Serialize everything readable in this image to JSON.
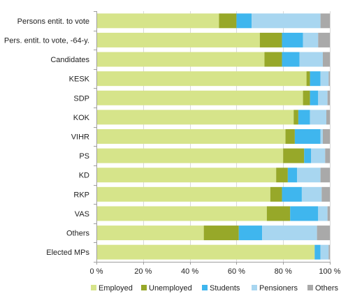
{
  "chart_data": {
    "type": "bar",
    "orientation": "horizontal",
    "stacked": true,
    "categories": [
      "Persons entit. to vote",
      "Pers. entit. to vote, -64-y.",
      "Candidates",
      "KESK",
      "SDP",
      "KOK",
      "VIHR",
      "PS",
      "KD",
      "RKP",
      "VAS",
      "Others",
      "Elected MPs"
    ],
    "series": [
      {
        "name": "Employed",
        "color": "#d6e48a",
        "values": [
          52.5,
          70,
          72,
          90,
          88.5,
          84.5,
          81,
          80,
          77,
          74.5,
          73,
          46,
          93.5
        ]
      },
      {
        "name": "Unemployed",
        "color": "#97a829",
        "values": [
          7.5,
          9.5,
          7.5,
          1.5,
          3,
          2,
          4,
          9,
          5,
          5,
          10,
          15,
          0
        ]
      },
      {
        "name": "Students",
        "color": "#3fb6ee",
        "values": [
          6.5,
          9,
          7.5,
          4.5,
          3.5,
          5,
          11,
          3,
          4,
          8.5,
          12,
          10,
          2.5
        ]
      },
      {
        "name": "Pensioners",
        "color": "#a8d6f0",
        "values": [
          29.5,
          6.5,
          10,
          3.5,
          4,
          7,
          1,
          6,
          10,
          8.5,
          4,
          23.5,
          3.5
        ]
      },
      {
        "name": "Others",
        "color": "#a9a9a9",
        "values": [
          4,
          5,
          3,
          0.5,
          1,
          1.5,
          3,
          2,
          4,
          3.5,
          1,
          5.5,
          0.5
        ]
      }
    ],
    "xlim": [
      0,
      100
    ],
    "xticks": [
      "0 %",
      "20 %",
      "40 %",
      "60 %",
      "80 %",
      "100 %"
    ],
    "xtick_values": [
      0,
      20,
      40,
      60,
      80,
      100
    ],
    "grid": true,
    "legend": "bottom"
  }
}
